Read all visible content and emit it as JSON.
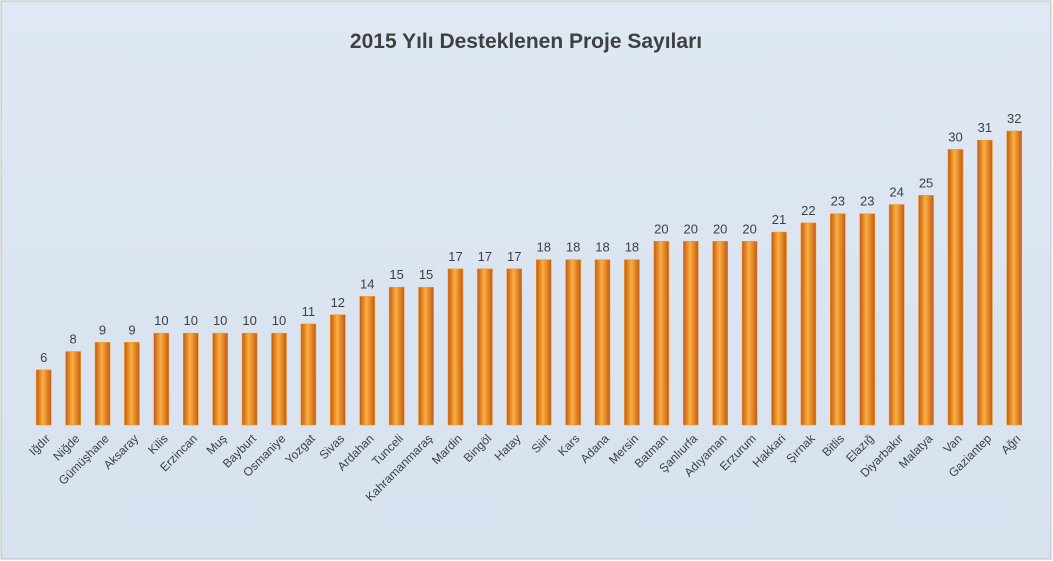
{
  "chart_data": {
    "type": "bar",
    "title": "2015 Yılı Desteklenen Proje Sayıları",
    "categories": [
      "Iğdır",
      "Niğde",
      "Gümüşhane",
      "Aksaray",
      "Kilis",
      "Erzincan",
      "Muş",
      "Bayburt",
      "Osmaniye",
      "Yozgat",
      "Sivas",
      "Ardahan",
      "Tunceli",
      "Kahramanmaraş",
      "Mardin",
      "Bingöl",
      "Hatay",
      "Siirt",
      "Kars",
      "Adana",
      "Mersin",
      "Batman",
      "Şanlıurfa",
      "Adıyaman",
      "Erzurum",
      "Hakkari",
      "Şırnak",
      "Bitlis",
      "Elazığ",
      "Diyarbakır",
      "Malatya",
      "Van",
      "Gaziantep",
      "Ağrı"
    ],
    "values": [
      6,
      8,
      9,
      9,
      10,
      10,
      10,
      10,
      10,
      11,
      12,
      14,
      15,
      15,
      17,
      17,
      17,
      18,
      18,
      18,
      18,
      20,
      20,
      20,
      20,
      21,
      22,
      23,
      23,
      24,
      25,
      30,
      31,
      32
    ],
    "color": "#f7941d"
  }
}
